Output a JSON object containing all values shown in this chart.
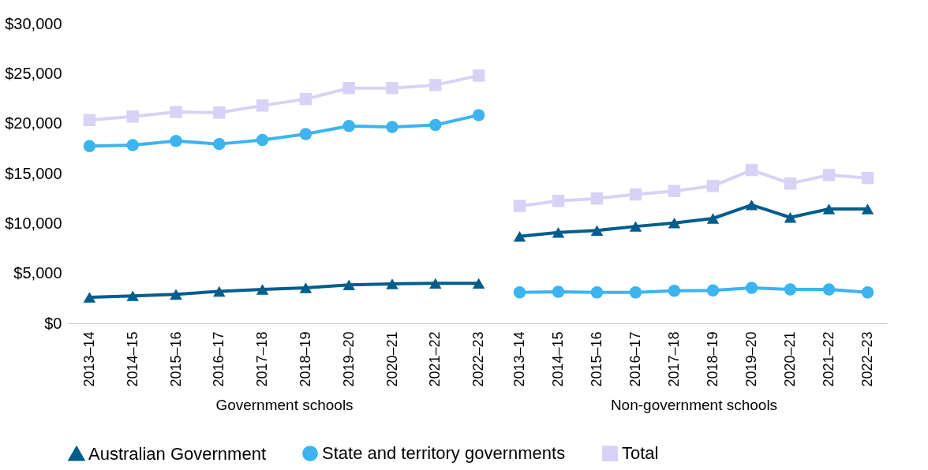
{
  "chart_data": [
    {
      "type": "line",
      "xlabel": "Government schools",
      "categories": [
        "2013–14",
        "2014–15",
        "2015–16",
        "2016–17",
        "2017–18",
        "2018–19",
        "2019–20",
        "2020–21",
        "2021–22",
        "2022–23"
      ],
      "ylim": [
        0,
        30000
      ],
      "yticks": [
        {
          "value": 0,
          "label": "$0"
        },
        {
          "value": 5000,
          "label": "$5,000"
        },
        {
          "value": 10000,
          "label": "$10,000"
        },
        {
          "value": 15000,
          "label": "$15,000"
        },
        {
          "value": 20000,
          "label": "$20,000"
        },
        {
          "value": 25000,
          "label": "$25,000"
        },
        {
          "value": 30000,
          "label": "$30,000"
        }
      ],
      "grid": false,
      "legend": "bottom",
      "series": [
        {
          "name": "Australian Government",
          "color": "#005d8c",
          "marker": "triangle",
          "values": [
            2600,
            2750,
            2900,
            3200,
            3400,
            3550,
            3850,
            3950,
            4000,
            4000
          ]
        },
        {
          "name": "State and territory governments",
          "color": "#3cb4f0",
          "marker": "circle",
          "values": [
            17750,
            17850,
            18250,
            17950,
            18350,
            18950,
            19750,
            19650,
            19850,
            20850
          ]
        },
        {
          "name": "Total",
          "color": "#d9d2f7",
          "marker": "square",
          "values": [
            20350,
            20700,
            21150,
            21100,
            21800,
            22450,
            23550,
            23550,
            23850,
            24800
          ]
        }
      ]
    },
    {
      "type": "line",
      "xlabel": "Non-government schools",
      "categories": [
        "2013–14",
        "2014–15",
        "2015–16",
        "2016–17",
        "2017–18",
        "2018–19",
        "2019–20",
        "2020–21",
        "2021–22",
        "2022–23"
      ],
      "ylim": [
        0,
        30000
      ],
      "grid": false,
      "legend": false,
      "tick_labels": "x",
      "series": [
        {
          "color": "#005d8c",
          "marker": "triangle",
          "values": [
            8700,
            9100,
            9300,
            9700,
            10050,
            10500,
            11850,
            10600,
            11450,
            11450
          ]
        },
        {
          "color": "#3cb4f0",
          "marker": "circle",
          "values": [
            3100,
            3150,
            3100,
            3100,
            3250,
            3300,
            3550,
            3400,
            3400,
            3100
          ]
        },
        {
          "color": "#d9d2f7",
          "marker": "square",
          "values": [
            11750,
            12250,
            12500,
            12900,
            13250,
            13750,
            15350,
            14000,
            14850,
            14550
          ]
        }
      ]
    }
  ]
}
